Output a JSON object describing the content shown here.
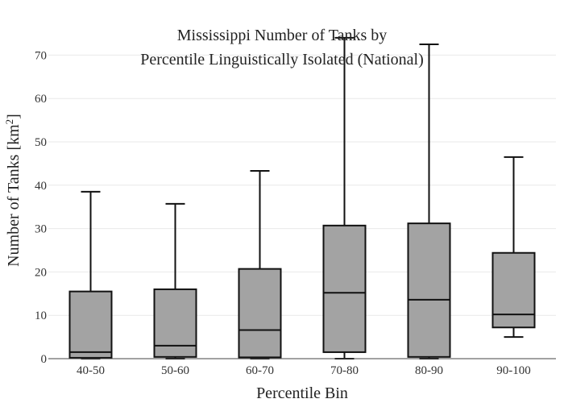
{
  "chart_data": {
    "type": "box",
    "title_lines": [
      "Mississippi Number of Tanks by",
      "Percentile Linguistically Isolated (National)"
    ],
    "xlabel": "Percentile Bin",
    "ylabel_main": "Number of Tanks  [km",
    "ylabel_sup": "2",
    "ylabel_end": "]",
    "ylim": [
      0,
      74
    ],
    "yticks": [
      0,
      10,
      20,
      30,
      40,
      50,
      60,
      70
    ],
    "grid": true,
    "box_fill": "#a3a3a3",
    "box_stroke": "#111111",
    "categories": [
      "40-50",
      "50-60",
      "60-70",
      "70-80",
      "80-90",
      "90-100"
    ],
    "boxes": [
      {
        "category": "40-50",
        "min": 0,
        "q1": 0.2,
        "median": 1.5,
        "q3": 15.5,
        "max": 38.5
      },
      {
        "category": "50-60",
        "min": 0,
        "q1": 0.4,
        "median": 3.0,
        "q3": 16.0,
        "max": 35.7
      },
      {
        "category": "60-70",
        "min": 0,
        "q1": 0.3,
        "median": 6.6,
        "q3": 20.7,
        "max": 43.3
      },
      {
        "category": "70-80",
        "min": 0,
        "q1": 1.5,
        "median": 15.2,
        "q3": 30.7,
        "max": 74.0
      },
      {
        "category": "80-90",
        "min": 0,
        "q1": 0.4,
        "median": 13.6,
        "q3": 31.2,
        "max": 72.5
      },
      {
        "category": "90-100",
        "min": 5,
        "q1": 7.2,
        "median": 10.2,
        "q3": 24.4,
        "max": 46.5
      }
    ]
  }
}
